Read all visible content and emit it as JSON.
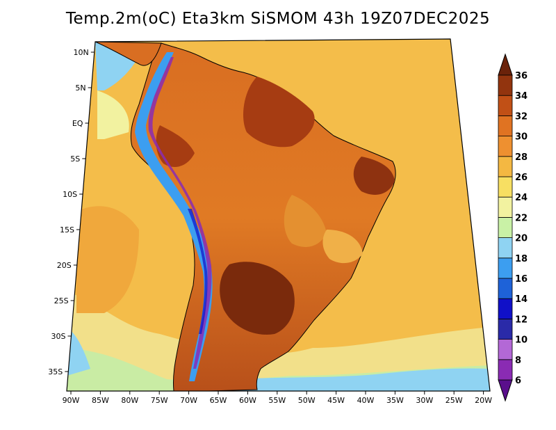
{
  "title": "Temp.2m(oC) Eta3km SiSMOM 43h 19Z07DEC2025",
  "lat_labels": [
    "10N",
    "5N",
    "EQ",
    "5S",
    "10S",
    "15S",
    "20S",
    "25S",
    "30S",
    "35S"
  ],
  "lon_labels": [
    "90W",
    "85W",
    "80W",
    "75W",
    "70W",
    "65W",
    "60W",
    "55W",
    "50W",
    "45W",
    "40W",
    "35W",
    "30W",
    "25W",
    "20W"
  ],
  "colorbar": {
    "labels": [
      "6",
      "8",
      "10",
      "12",
      "14",
      "16",
      "18",
      "20",
      "22",
      "24",
      "26",
      "28",
      "30",
      "32",
      "34",
      "36"
    ],
    "colors": [
      "#5a0f8c",
      "#8a2bb3",
      "#b368d6",
      "#2a2aa8",
      "#1010c8",
      "#1e62d8",
      "#3c9ef0",
      "#8fd3f2",
      "#c9f1a6",
      "#f2f2a0",
      "#f7df62",
      "#f4b842",
      "#ee9030",
      "#e07322",
      "#c15016",
      "#92340e",
      "#6a220a"
    ]
  }
}
